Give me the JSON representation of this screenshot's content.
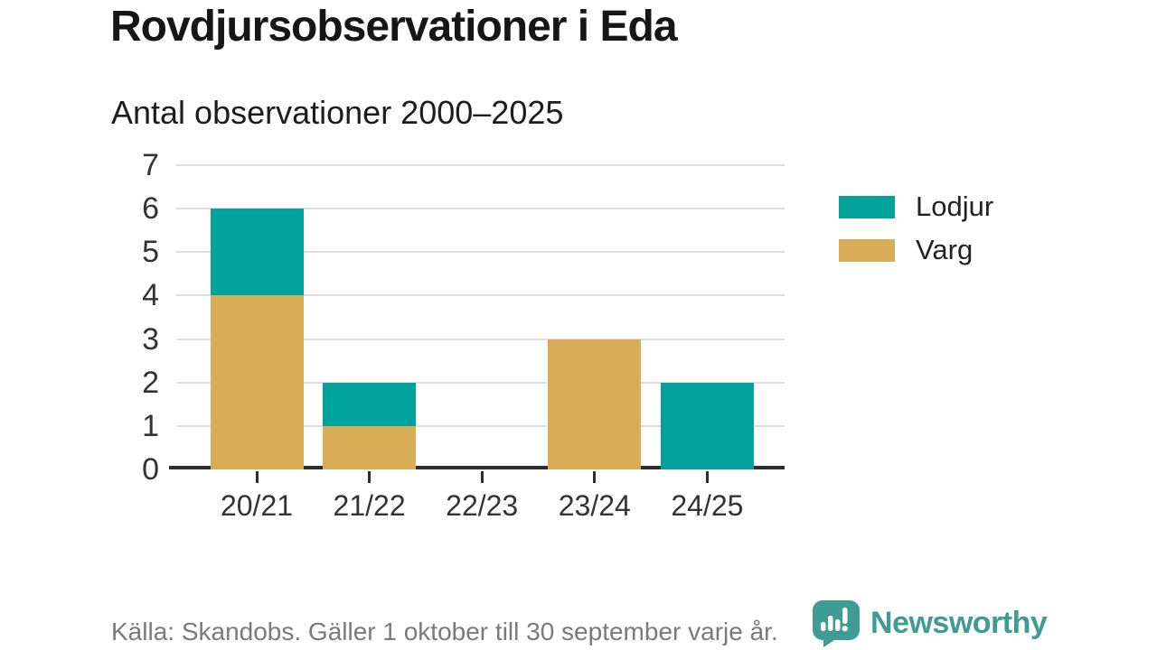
{
  "title": "Rovdjursobservationer i Eda",
  "subtitle": "Antal observationer 2000–2025",
  "footer": {
    "source": "Källa: Skandobs. Gäller 1 oktober till 30 september varje år."
  },
  "branding": {
    "name": "Newsworthy",
    "logo_icon": "newsworthy-speech-bubble-chart-icon",
    "color": "#3e9c95"
  },
  "colors": {
    "lodjur": "#00a39b",
    "varg": "#d9ac56",
    "gridline": "#dedede",
    "axis": "#2d2d2d",
    "tick_text": "#333333",
    "muted_text": "#7a7a7a"
  },
  "legend": {
    "items": [
      {
        "label": "Lodjur",
        "color": "#00a39b"
      },
      {
        "label": "Varg",
        "color": "#d9ac56"
      }
    ]
  },
  "chart_data": {
    "type": "bar",
    "stacked": true,
    "title": "Rovdjursobservationer i Eda",
    "subtitle": "Antal observationer 2000–2025",
    "categories": [
      "20/21",
      "21/22",
      "22/23",
      "23/24",
      "24/25"
    ],
    "series": [
      {
        "name": "Lodjur",
        "color": "#00a39b",
        "values": [
          2,
          1,
          0,
          0,
          2
        ]
      },
      {
        "name": "Varg",
        "color": "#d9ac56",
        "values": [
          4,
          1,
          0,
          3,
          0
        ]
      }
    ],
    "stack_order": [
      "Varg",
      "Lodjur"
    ],
    "totals": [
      6,
      2,
      0,
      3,
      2
    ],
    "xlabel": "",
    "ylabel": "",
    "ylim": [
      0,
      7
    ],
    "yticks": [
      0,
      1,
      2,
      3,
      4,
      5,
      6,
      7
    ],
    "grid": true,
    "legend_position": "right",
    "source_note": "Källa: Skandobs. Gäller 1 oktober till 30 september varje år."
  }
}
